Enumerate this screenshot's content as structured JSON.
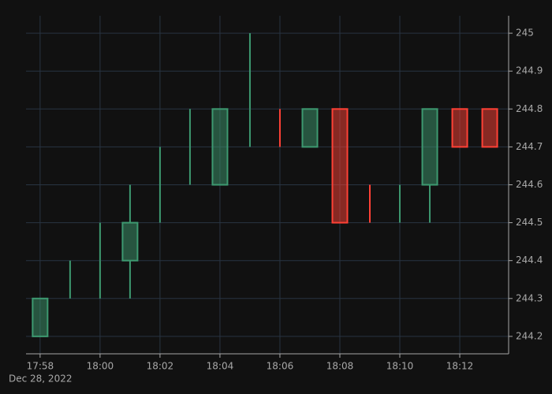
{
  "chart_data": {
    "type": "candlestick",
    "x": [
      "17:58",
      "17:59",
      "18:00",
      "18:01",
      "18:02",
      "18:03",
      "18:04",
      "18:05",
      "18:06",
      "18:07",
      "18:08",
      "18:09",
      "18:10",
      "18:11",
      "18:12",
      "18:13"
    ],
    "open": [
      244.2,
      244.3,
      244.4,
      244.4,
      244.6,
      244.6,
      244.6,
      244.8,
      244.7,
      244.7,
      244.8,
      244.5,
      244.6,
      244.6,
      244.8,
      244.8
    ],
    "high": [
      244.3,
      244.4,
      244.5,
      244.6,
      244.7,
      244.8,
      244.8,
      245,
      244.8,
      244.8,
      244.8,
      244.6,
      244.6,
      244.8,
      244.8,
      244.8
    ],
    "low": [
      244.2,
      244.3,
      244.3,
      244.3,
      244.5,
      244.6,
      244.6,
      244.7,
      244.7,
      244.7,
      244.5,
      244.5,
      244.5,
      244.5,
      244.7,
      244.7
    ],
    "close": [
      244.3,
      244.3,
      244.4,
      244.5,
      244.6,
      244.6,
      244.8,
      244.8,
      244.7,
      244.8,
      244.5,
      244.5,
      244.6,
      244.8,
      244.7,
      244.7
    ],
    "xticks": [
      "17:58",
      "18:00",
      "18:02",
      "18:04",
      "18:06",
      "18:08",
      "18:10",
      "18:12"
    ],
    "date_label": "Dec 28, 2022",
    "ylim": [
      244.154,
      245.046
    ],
    "yticks": [
      244.2,
      244.3,
      244.4,
      244.5,
      244.6,
      244.7,
      244.8,
      244.9,
      245
    ],
    "increasing_color": "#3D9970",
    "decreasing_color": "#FF4136",
    "grid": true
  }
}
